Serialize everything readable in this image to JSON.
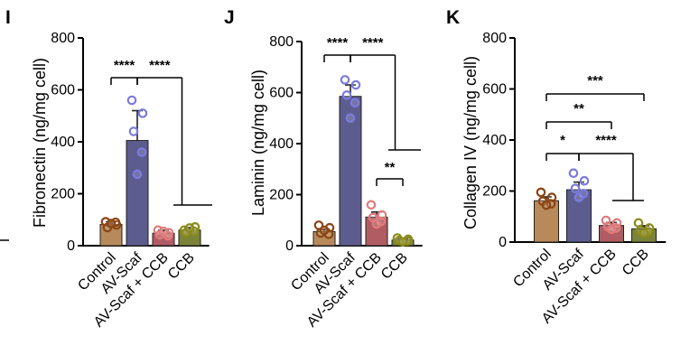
{
  "chart_data": [
    {
      "type": "bar",
      "panel": "I",
      "ylabel": "Fibronectin (ng/mg cell)",
      "ylim": [
        0,
        800
      ],
      "yticks": [
        0,
        200,
        400,
        600,
        800
      ],
      "categories": [
        "Control",
        "AV-Scaf",
        "AV-Scaf + CCB",
        "CCB"
      ],
      "values": [
        82,
        405,
        48,
        60
      ],
      "errors": [
        10,
        115,
        12,
        10
      ],
      "points": [
        [
          92,
          80,
          70,
          90,
          85
        ],
        [
          560,
          510,
          440,
          360,
          275
        ],
        [
          60,
          50,
          42,
          38,
          55
        ],
        [
          60,
          72,
          50,
          55,
          68
        ]
      ],
      "colors": [
        "#b8895a",
        "#5d5c8f",
        "#b05c62",
        "#7b8339"
      ],
      "point_colors": [
        "#8b4513",
        "#7b7bde",
        "#e07b7b",
        "#8b8b1a"
      ],
      "significance": [
        {
          "label": "****",
          "from": 0,
          "to": 1
        },
        {
          "label": "****",
          "from": 1,
          "to_group": [
            2,
            3
          ]
        }
      ]
    },
    {
      "type": "bar",
      "panel": "J",
      "ylabel": "Laminin (ng/mg cell)",
      "ylim": [
        0,
        800
      ],
      "yticks": [
        0,
        200,
        400,
        600,
        800
      ],
      "categories": [
        "Control",
        "AV-Scaf",
        "AV-Scaf + CCB",
        "CCB"
      ],
      "values": [
        55,
        585,
        112,
        22
      ],
      "errors": [
        10,
        45,
        20,
        5
      ],
      "points": [
        [
          80,
          70,
          50,
          45,
          60
        ],
        [
          650,
          630,
          590,
          560,
          500
        ],
        [
          160,
          120,
          110,
          95,
          85
        ],
        [
          30,
          25,
          20,
          18,
          15
        ]
      ],
      "colors": [
        "#b8895a",
        "#5d5c8f",
        "#b05c62",
        "#7b8339"
      ],
      "point_colors": [
        "#8b4513",
        "#7b7bde",
        "#e07b7b",
        "#8b8b1a"
      ],
      "significance": [
        {
          "label": "****",
          "from": 0,
          "to": 1
        },
        {
          "label": "****",
          "from": 1,
          "to_group": [
            2,
            3
          ]
        },
        {
          "label": "**",
          "from": 2,
          "to": 3
        }
      ]
    },
    {
      "type": "bar",
      "panel": "K",
      "ylabel": "Collagen IV (ng/mg cell)",
      "ylim": [
        0,
        800
      ],
      "yticks": [
        0,
        200,
        400,
        600,
        800
      ],
      "categories": [
        "Control",
        "AV-Scaf",
        "AV-Scaf + CCB",
        "CCB"
      ],
      "values": [
        162,
        205,
        65,
        52
      ],
      "errors": [
        15,
        30,
        12,
        12
      ],
      "points": [
        [
          195,
          175,
          160,
          150,
          145
        ],
        [
          270,
          240,
          210,
          190,
          175
        ],
        [
          85,
          75,
          60,
          55,
          50
        ],
        [
          75,
          55,
          45,
          40,
          35
        ]
      ],
      "colors": [
        "#b8895a",
        "#5d5c8f",
        "#b05c62",
        "#7b8339"
      ],
      "point_colors": [
        "#8b4513",
        "#7b7bde",
        "#e07b7b",
        "#8b8b1a"
      ],
      "significance": [
        {
          "label": "*",
          "from": 0,
          "to": 1
        },
        {
          "label": "****",
          "from": 1,
          "to_group": [
            2,
            3
          ]
        },
        {
          "label": "**",
          "from": 0,
          "to": 2
        },
        {
          "label": "***",
          "from": 0,
          "to": 3
        }
      ]
    }
  ]
}
